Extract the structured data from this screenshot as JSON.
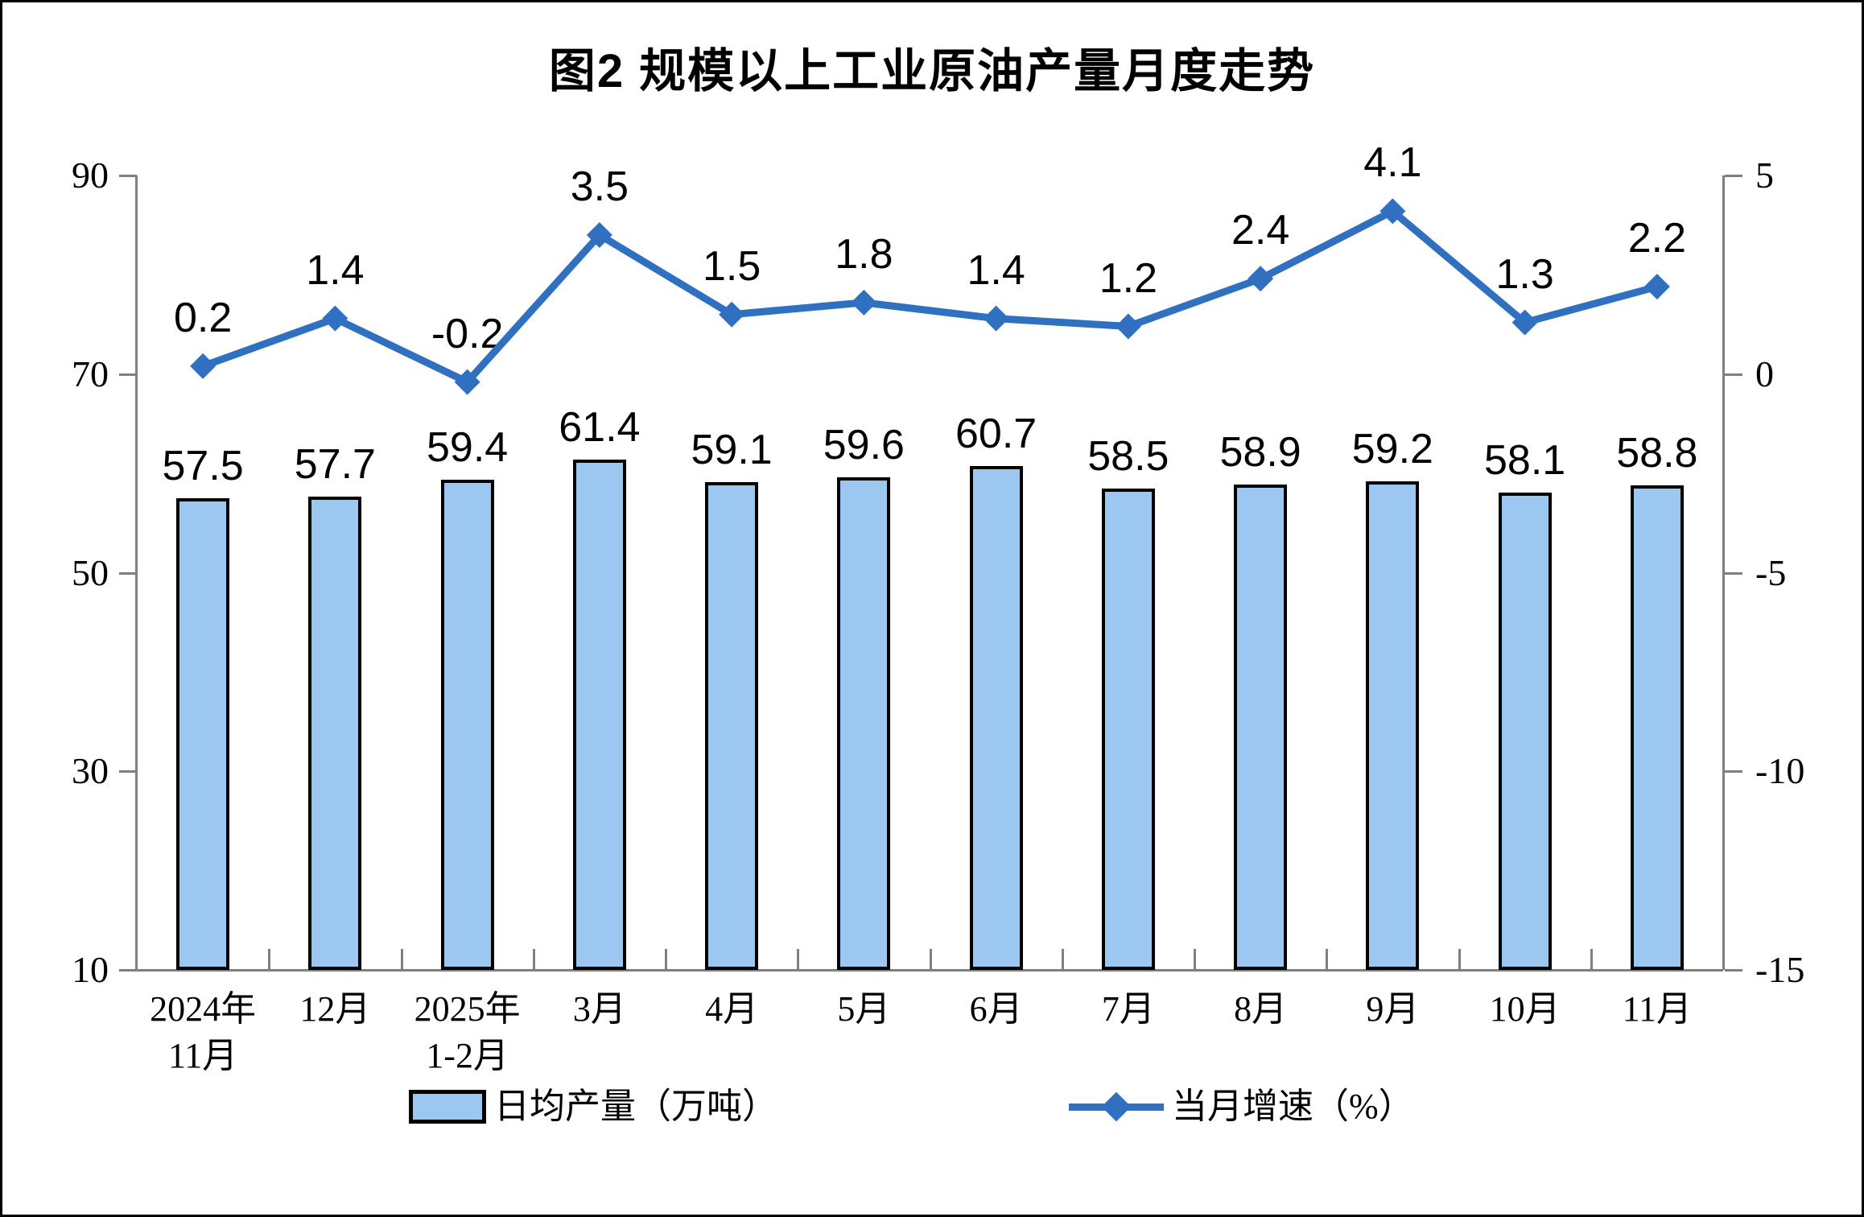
{
  "title": "图2 规模以上工业原油产量月度走势",
  "chart_data": {
    "type": "bar+line",
    "categories": [
      "2024年\n11月",
      "12月",
      "2025年\n1-2月",
      "3月",
      "4月",
      "5月",
      "6月",
      "7月",
      "8月",
      "9月",
      "10月",
      "11月"
    ],
    "series": [
      {
        "name": "日均产量（万吨）",
        "type": "bar",
        "axis": "left",
        "values": [
          57.5,
          57.7,
          59.4,
          61.4,
          59.1,
          59.6,
          60.7,
          58.5,
          58.9,
          59.2,
          58.1,
          58.8
        ]
      },
      {
        "name": "当月增速（%）",
        "type": "line",
        "marker": "diamond",
        "axis": "right",
        "values": [
          0.2,
          1.4,
          -0.2,
          3.5,
          1.5,
          1.8,
          1.4,
          1.2,
          2.4,
          4.1,
          1.3,
          2.2
        ]
      }
    ],
    "left_axis": {
      "min": 10,
      "max": 90,
      "ticks": [
        90,
        70,
        50,
        30,
        10
      ]
    },
    "right_axis": {
      "min": -15,
      "max": 5,
      "ticks": [
        5,
        0,
        -5,
        -10,
        -15
      ]
    },
    "grid": false,
    "legend_position": "bottom",
    "colors": {
      "bar_fill": "#9CC7F0",
      "bar_border": "#000000",
      "line": "#3070C0",
      "axis": "#7F7F7F",
      "text": "#000000"
    }
  }
}
